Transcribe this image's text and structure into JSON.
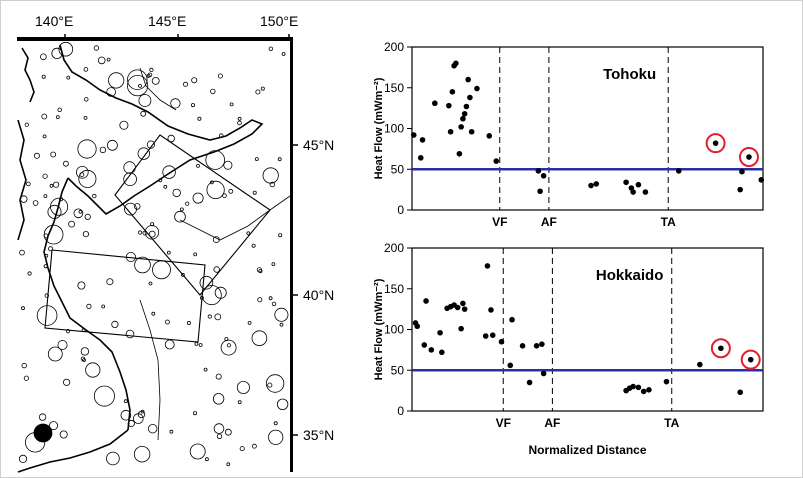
{
  "map": {
    "lon_labels": [
      "140°E",
      "145°E",
      "150°E"
    ],
    "lat_labels": [
      "45°N",
      "40°N",
      "35°N"
    ]
  },
  "colors": {
    "reference_line": "#2b2fa0",
    "highlight_ring": "#e0202a",
    "points": "#000000"
  },
  "xlabel": "Normalized Distance",
  "chart_data": [
    {
      "type": "scatter",
      "title": "Tohoku",
      "ylabel": "Heat Flow (mWm⁻²)",
      "ylim": [
        0,
        200
      ],
      "yticks": [
        0,
        50,
        100,
        150,
        200
      ],
      "xlim": [
        0,
        100
      ],
      "reference_line": 50,
      "markers": [
        {
          "label": "VF",
          "x": 25
        },
        {
          "label": "AF",
          "x": 39
        },
        {
          "label": "TA",
          "x": 73
        }
      ],
      "points": [
        {
          "x": 0.5,
          "y": 92
        },
        {
          "x": 2.5,
          "y": 64
        },
        {
          "x": 3,
          "y": 86
        },
        {
          "x": 6.5,
          "y": 131
        },
        {
          "x": 10.5,
          "y": 128
        },
        {
          "x": 11,
          "y": 96
        },
        {
          "x": 11.5,
          "y": 145
        },
        {
          "x": 12,
          "y": 177
        },
        {
          "x": 12.5,
          "y": 180
        },
        {
          "x": 13.5,
          "y": 69
        },
        {
          "x": 14,
          "y": 102
        },
        {
          "x": 14.5,
          "y": 112
        },
        {
          "x": 15,
          "y": 118
        },
        {
          "x": 15.5,
          "y": 127
        },
        {
          "x": 16,
          "y": 160
        },
        {
          "x": 16.5,
          "y": 138
        },
        {
          "x": 17,
          "y": 96
        },
        {
          "x": 18.5,
          "y": 149
        },
        {
          "x": 22,
          "y": 91
        },
        {
          "x": 24,
          "y": 60
        },
        {
          "x": 36,
          "y": 48
        },
        {
          "x": 36.5,
          "y": 23
        },
        {
          "x": 37.5,
          "y": 42
        },
        {
          "x": 51,
          "y": 30
        },
        {
          "x": 52.5,
          "y": 32
        },
        {
          "x": 61,
          "y": 34
        },
        {
          "x": 62.5,
          "y": 27
        },
        {
          "x": 63,
          "y": 22
        },
        {
          "x": 64.5,
          "y": 31
        },
        {
          "x": 66.5,
          "y": 22
        },
        {
          "x": 76,
          "y": 48
        },
        {
          "x": 86.5,
          "y": 82
        },
        {
          "x": 93.5,
          "y": 25
        },
        {
          "x": 94,
          "y": 47
        },
        {
          "x": 96,
          "y": 65
        },
        {
          "x": 99.5,
          "y": 37
        }
      ],
      "highlighted": [
        {
          "x": 86.5,
          "y": 82
        },
        {
          "x": 96,
          "y": 65
        }
      ]
    },
    {
      "type": "scatter",
      "title": "Hokkaido",
      "ylabel": "Heat Flow (mWm⁻²)",
      "ylim": [
        0,
        200
      ],
      "yticks": [
        0,
        50,
        100,
        150,
        200
      ],
      "xlim": [
        0,
        100
      ],
      "reference_line": 50,
      "markers": [
        {
          "label": "VF",
          "x": 26
        },
        {
          "label": "AF",
          "x": 40
        },
        {
          "label": "TA",
          "x": 74
        }
      ],
      "points": [
        {
          "x": 1,
          "y": 108
        },
        {
          "x": 1.5,
          "y": 104
        },
        {
          "x": 3.5,
          "y": 81
        },
        {
          "x": 4,
          "y": 135
        },
        {
          "x": 5.5,
          "y": 75
        },
        {
          "x": 8,
          "y": 96
        },
        {
          "x": 8.5,
          "y": 72
        },
        {
          "x": 10,
          "y": 126
        },
        {
          "x": 11,
          "y": 128
        },
        {
          "x": 12,
          "y": 130
        },
        {
          "x": 13,
          "y": 127
        },
        {
          "x": 14,
          "y": 101
        },
        {
          "x": 14.5,
          "y": 132
        },
        {
          "x": 15,
          "y": 125
        },
        {
          "x": 21,
          "y": 92
        },
        {
          "x": 21.5,
          "y": 178
        },
        {
          "x": 22.5,
          "y": 124
        },
        {
          "x": 23,
          "y": 93
        },
        {
          "x": 25.5,
          "y": 85
        },
        {
          "x": 28,
          "y": 56
        },
        {
          "x": 28.5,
          "y": 112
        },
        {
          "x": 31.5,
          "y": 80
        },
        {
          "x": 33.5,
          "y": 35
        },
        {
          "x": 35.5,
          "y": 80
        },
        {
          "x": 37,
          "y": 82
        },
        {
          "x": 37.5,
          "y": 46
        },
        {
          "x": 61,
          "y": 25
        },
        {
          "x": 62,
          "y": 28
        },
        {
          "x": 63,
          "y": 30
        },
        {
          "x": 64.5,
          "y": 29
        },
        {
          "x": 66,
          "y": 24
        },
        {
          "x": 67.5,
          "y": 26
        },
        {
          "x": 72.5,
          "y": 36
        },
        {
          "x": 82,
          "y": 57
        },
        {
          "x": 88,
          "y": 77
        },
        {
          "x": 93.5,
          "y": 23
        },
        {
          "x": 96.5,
          "y": 63
        }
      ],
      "highlighted": [
        {
          "x": 88,
          "y": 77
        },
        {
          "x": 96.5,
          "y": 63
        }
      ]
    }
  ]
}
